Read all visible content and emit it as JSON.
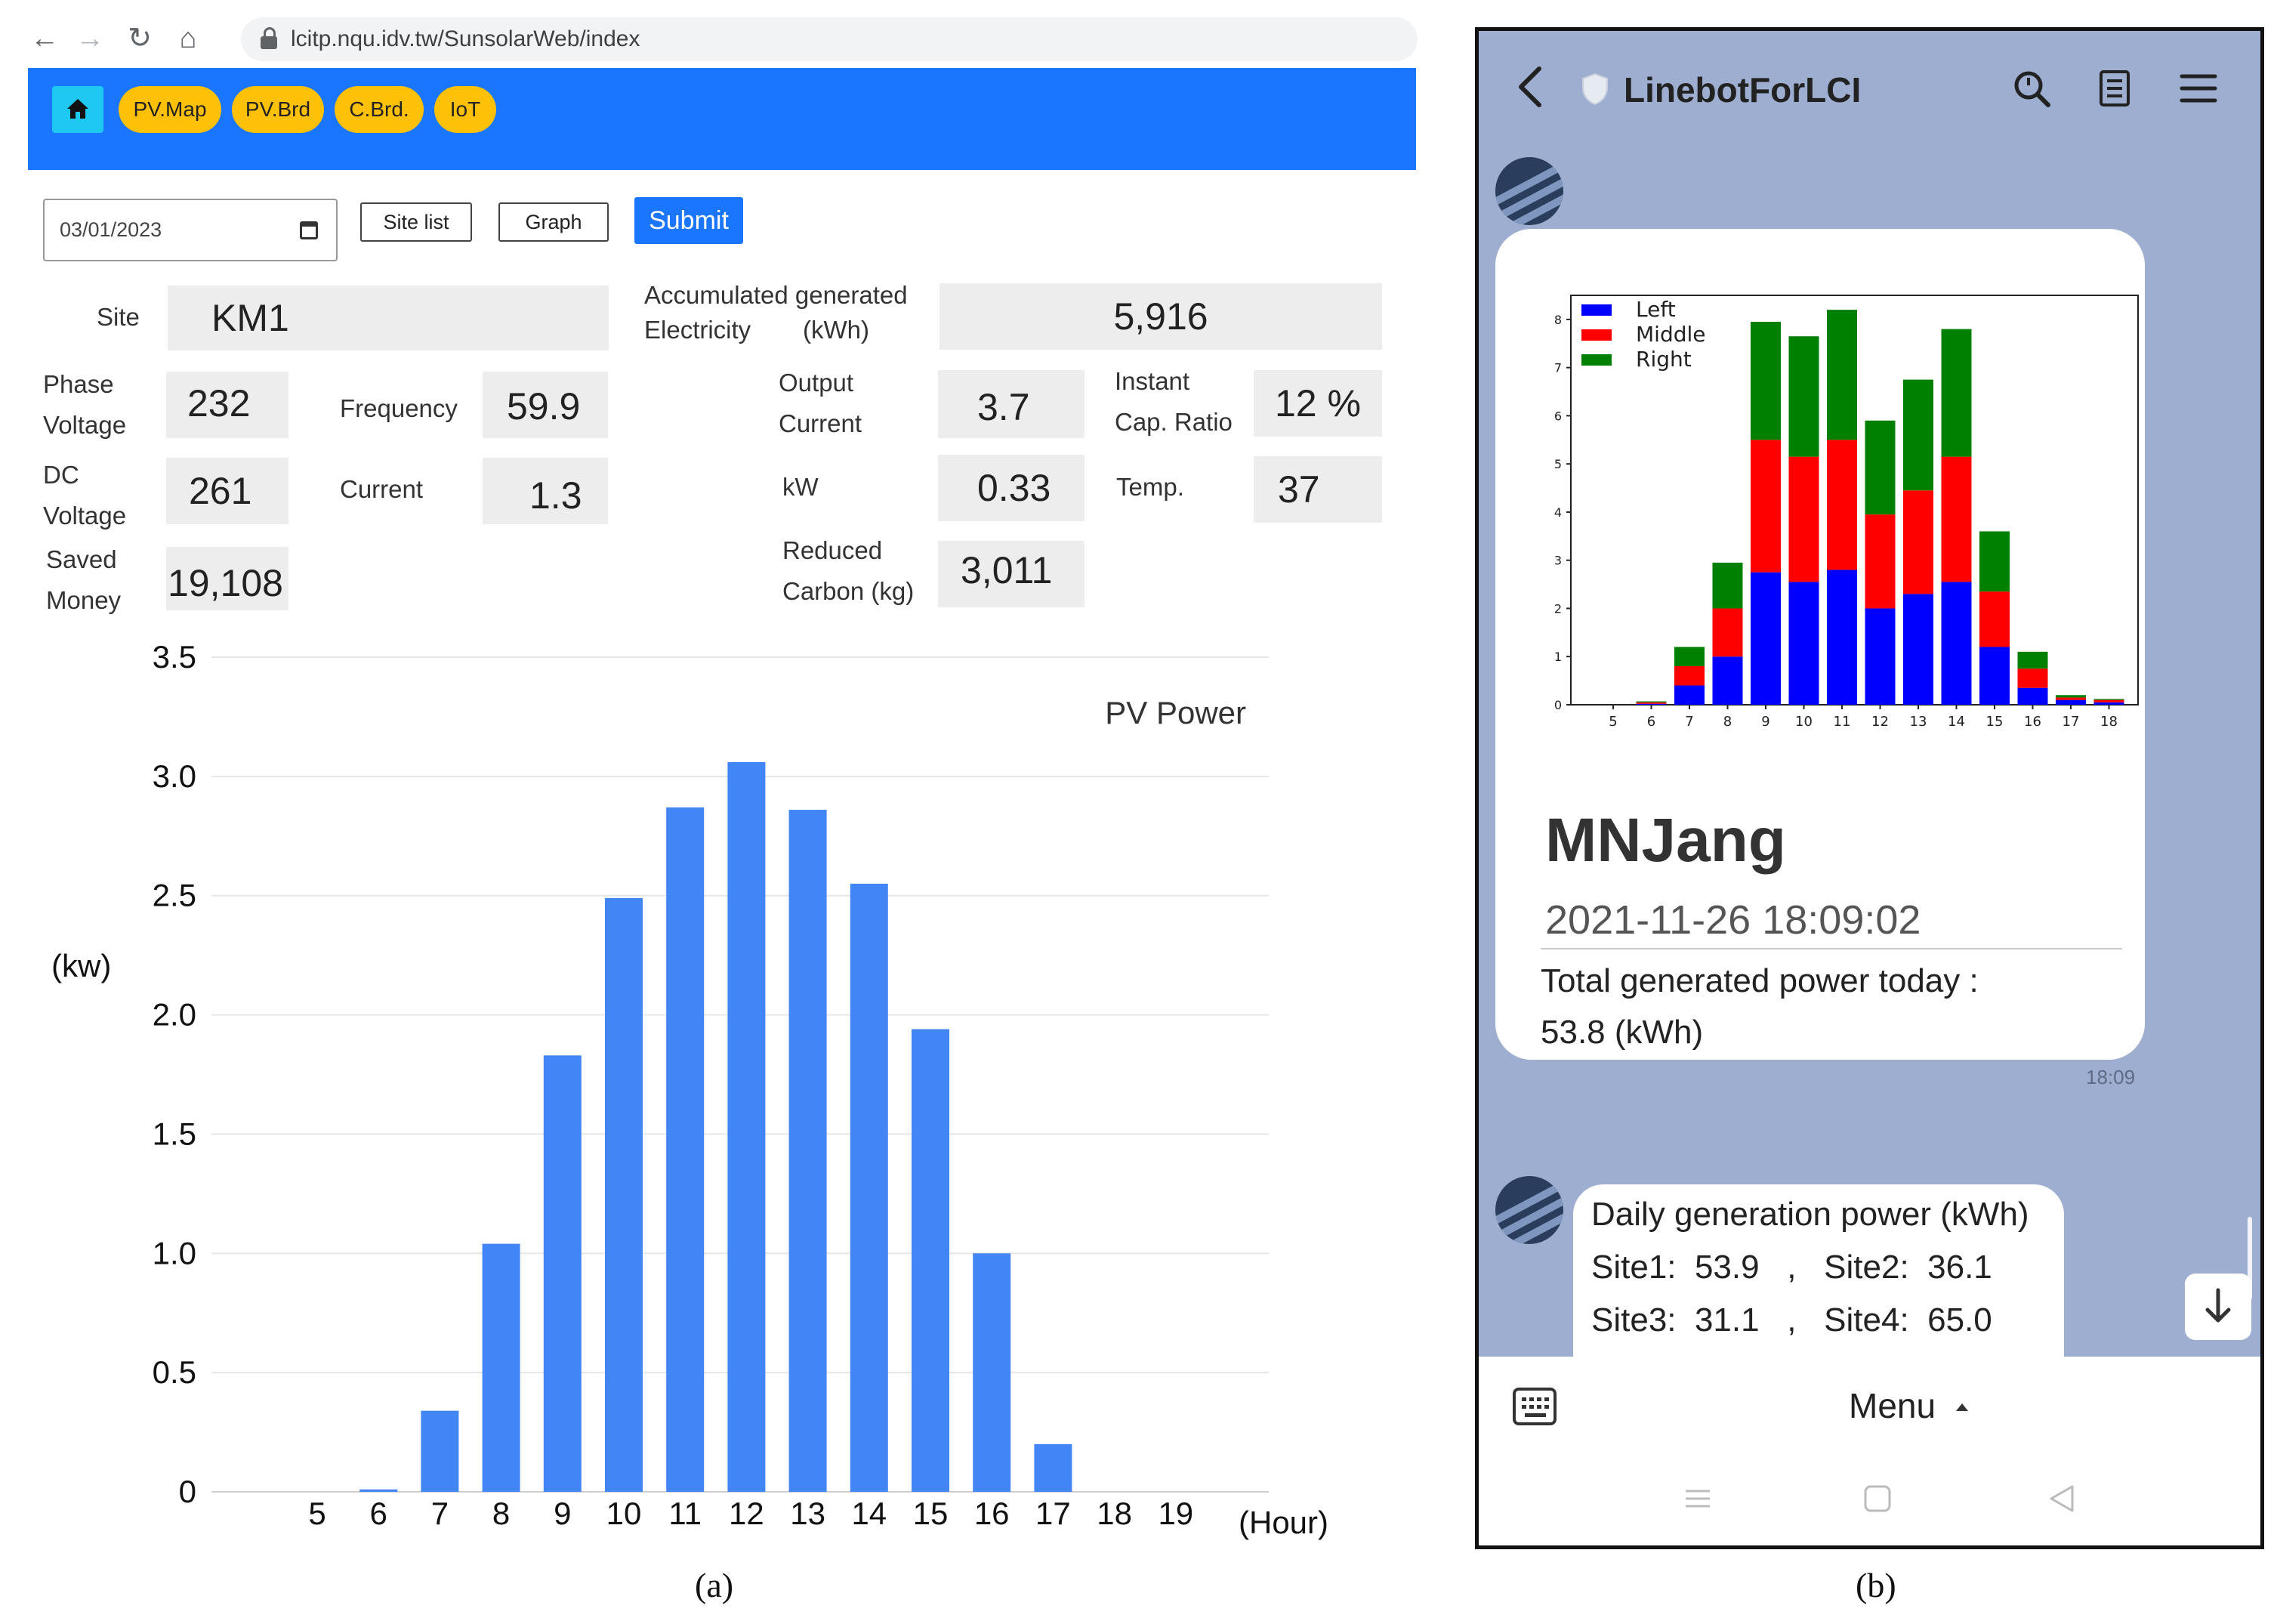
{
  "browser": {
    "url": "lcitp.nqu.idv.tw/SunsolarWeb/index"
  },
  "nav": {
    "pills": [
      "PV.Map",
      "PV.Brd",
      "C.Brd.",
      "IoT"
    ]
  },
  "form": {
    "date": "03/01/2023",
    "site_list_label": "Site list",
    "graph_label": "Graph",
    "submit_label": "Submit"
  },
  "readings": {
    "site_label": "Site",
    "site": "KM1",
    "acc_label_1": "Accumulated generated",
    "acc_label_2": "Electricity",
    "acc_label_3": "(kWh)",
    "acc": "5,916",
    "phase_label_1": "Phase",
    "phase_label_2": "Voltage",
    "phase": "232",
    "freq_label": "Frequency",
    "freq": "59.9",
    "outc_label_1": "Output",
    "outc_label_2": "Current",
    "outc": "3.7",
    "cap_label_1": "Instant",
    "cap_label_2": "Cap. Ratio",
    "cap": "12 %",
    "dc_label_1": "DC",
    "dc_label_2": "Voltage",
    "dc": "261",
    "current_label": "Current",
    "current": "1.3",
    "kw_label": "kW",
    "kw": "0.33",
    "temp_label": "Temp.",
    "temp": "37",
    "saved_label_1": "Saved",
    "saved_label_2": "Money",
    "saved": "19,108",
    "carbon_label_1": "Reduced",
    "carbon_label_2": "Carbon (kg)",
    "carbon": "3,011"
  },
  "chart_data": [
    {
      "type": "bar",
      "title": "PV Power",
      "xlabel": "(Hour)",
      "ylabel": "(kw)",
      "ylim": [
        0,
        3.5
      ],
      "yticks": [
        "0",
        "0.5",
        "1.0",
        "1.5",
        "2.0",
        "2.5",
        "3.0",
        "3.5"
      ],
      "grid": true,
      "color": "#4285f4",
      "categories": [
        "5",
        "6",
        "7",
        "8",
        "9",
        "10",
        "11",
        "12",
        "13",
        "14",
        "15",
        "16",
        "17",
        "18",
        "19"
      ],
      "values": [
        0,
        0.01,
        0.34,
        1.04,
        1.83,
        2.49,
        2.87,
        3.06,
        2.86,
        2.55,
        1.94,
        1.0,
        0.2,
        0,
        0
      ]
    },
    {
      "type": "bar",
      "stacked": true,
      "legend": "top-left",
      "ylim": [
        0,
        8.5
      ],
      "yticks": [
        "0",
        "1",
        "2",
        "3",
        "4",
        "5",
        "6",
        "7",
        "8"
      ],
      "categories": [
        "5",
        "6",
        "7",
        "8",
        "9",
        "10",
        "11",
        "12",
        "13",
        "14",
        "15",
        "16",
        "17",
        "18"
      ],
      "series": [
        {
          "name": "Left",
          "color": "#0000ff",
          "values": [
            0,
            0.02,
            0.4,
            1.0,
            2.75,
            2.55,
            2.8,
            2.0,
            2.3,
            2.55,
            1.2,
            0.35,
            0.1,
            0.05
          ]
        },
        {
          "name": "Middle",
          "color": "#ff0000",
          "values": [
            0,
            0.03,
            0.4,
            1.0,
            2.75,
            2.6,
            2.7,
            1.95,
            2.15,
            2.6,
            1.15,
            0.4,
            0.05,
            0.05
          ]
        },
        {
          "name": "Right",
          "color": "#008000",
          "values": [
            0,
            0.02,
            0.4,
            0.95,
            2.45,
            2.5,
            2.7,
            1.95,
            2.3,
            2.65,
            1.25,
            0.35,
            0.05,
            0.02
          ]
        }
      ]
    }
  ],
  "captions": {
    "a": "(a)",
    "b": "(b)"
  },
  "phone": {
    "title": "LinebotForLCI",
    "sender": "MNJang",
    "timestamp": "2021-11-26 18:09:02",
    "total_label": "Total generated power today :",
    "total_value": "53.8 (kWh)",
    "msg_time": "18:09",
    "daily_title": "Daily generation power (kWh)",
    "daily_line_1": "Site1:  53.9   ,   Site2:  36.1",
    "daily_line_2": "Site3:  31.1   ,   Site4:  65.0",
    "menu_label": "Menu"
  }
}
